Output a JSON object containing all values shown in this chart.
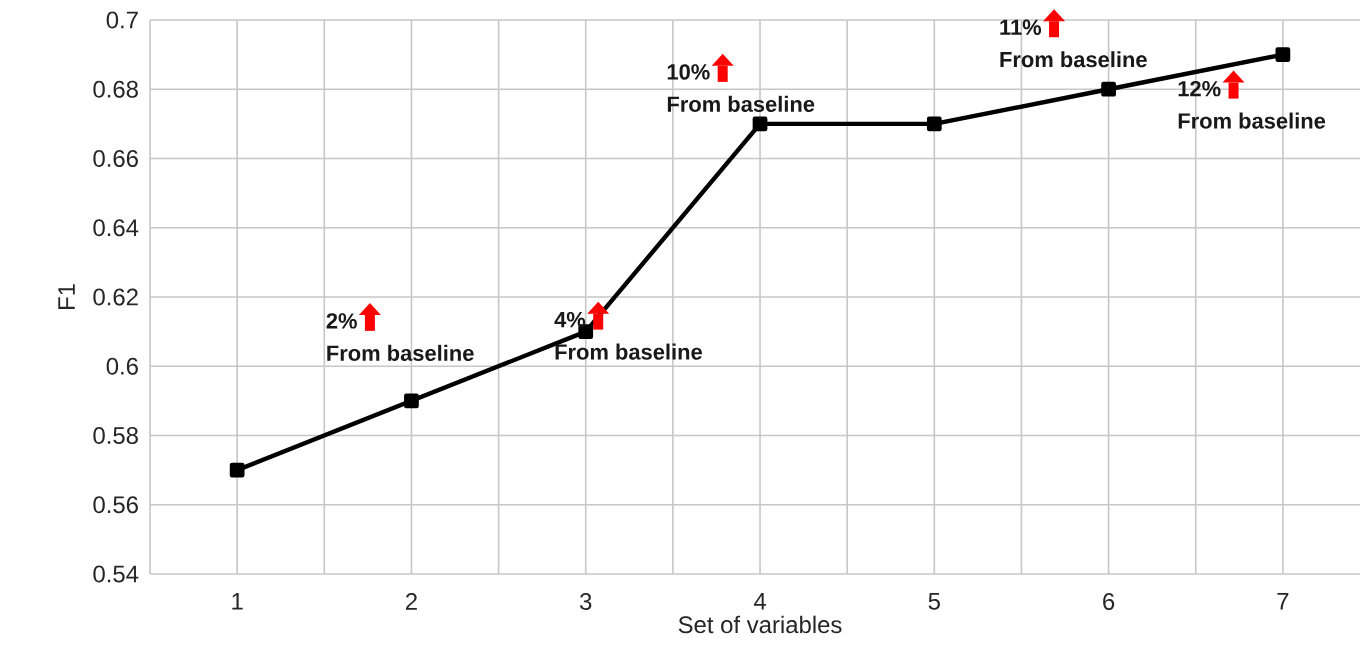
{
  "chart_data": {
    "type": "line",
    "xlabel": "Set of variables",
    "ylabel": "F1",
    "categories": [
      "1",
      "2",
      "3",
      "4",
      "5",
      "6",
      "7"
    ],
    "series": [
      {
        "color": "#000000",
        "values": [
          0.57,
          0.59,
          0.61,
          0.67,
          0.67,
          0.68,
          0.69
        ]
      }
    ],
    "ylim": [
      0.54,
      0.7
    ],
    "yticks": [
      0.54,
      0.56,
      0.58,
      0.6,
      0.62,
      0.64,
      0.66,
      0.68,
      0.7
    ],
    "grid": true,
    "marker": "square",
    "line_style": "solid",
    "annotations": [
      "2%",
      "From baseline",
      "4%",
      "From baseline",
      "10%",
      "From baseline",
      "11%",
      "From baseline",
      "12%",
      "From baseline"
    ]
  }
}
